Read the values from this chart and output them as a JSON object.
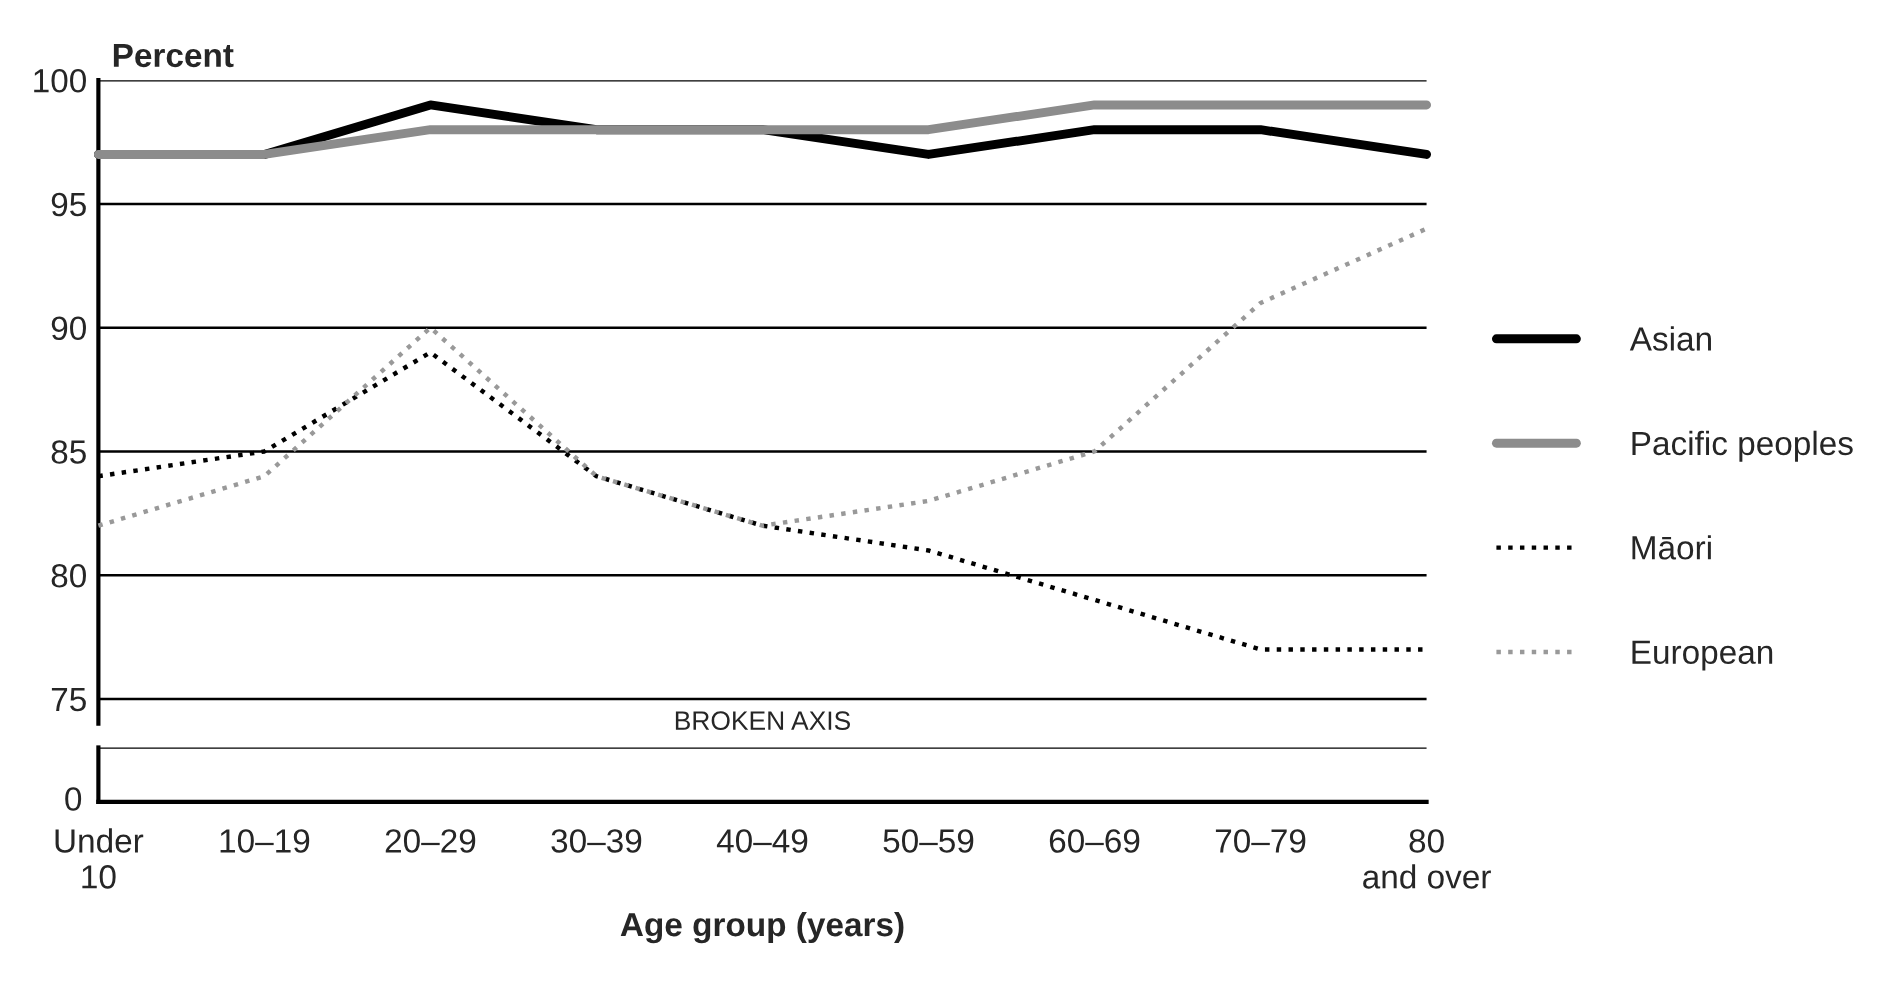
{
  "chart_data": {
    "type": "line",
    "ylabel": "Percent",
    "xlabel": "Age group (years)",
    "categories": [
      "Under\n10",
      "10–19",
      "20–29",
      "30–39",
      "40–49",
      "50–59",
      "60–69",
      "70–79",
      "80\nand over"
    ],
    "ylim": [
      74,
      100
    ],
    "yticks": [
      75,
      80,
      85,
      90,
      95,
      100
    ],
    "grid": "y",
    "legend": "right",
    "annotations": [
      "BROKEN AXIS",
      "0"
    ],
    "series": [
      {
        "name": "Asian",
        "color": "#000000",
        "line_style": "solid",
        "values": [
          97,
          97,
          99,
          98,
          98,
          97,
          98,
          98,
          97
        ]
      },
      {
        "name": "Pacific peoples",
        "color": "#8c8c8c",
        "line_style": "solid",
        "values": [
          97,
          97,
          98,
          98,
          98,
          98,
          99,
          99,
          99
        ]
      },
      {
        "name": "Māori",
        "color": "#000000",
        "line_style": "dotted",
        "values": [
          84,
          85,
          89,
          84,
          82,
          81,
          79,
          77,
          77
        ]
      },
      {
        "name": "European",
        "color": "#999999",
        "line_style": "dotted",
        "values": [
          82,
          84,
          90,
          84,
          82,
          83,
          85,
          91,
          94
        ]
      }
    ]
  }
}
